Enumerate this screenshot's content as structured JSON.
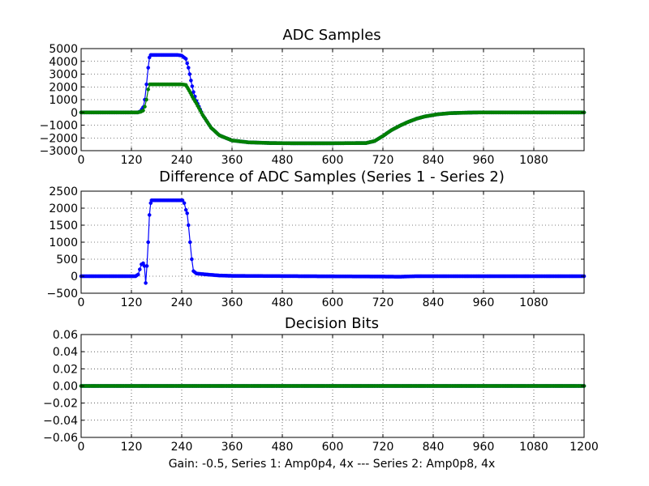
{
  "figure": {
    "xlabel": "Gain: -0.5, Series 1: Amp0p4, 4x --- Series 2: Amp0p8, 4x"
  },
  "colors": {
    "series1": "#0000ff",
    "series2": "#008000",
    "grid": "#000000"
  },
  "chart_data": [
    {
      "id": "adc",
      "type": "line",
      "title": "ADC Samples",
      "xlim": [
        0,
        1200
      ],
      "ylim": [
        -3000,
        5000
      ],
      "xticks": [
        0,
        120,
        240,
        360,
        480,
        600,
        720,
        840,
        960,
        1080
      ],
      "yticks": [
        -3000,
        -2000,
        -1000,
        0,
        1000,
        2000,
        3000,
        4000,
        5000
      ],
      "grid": true,
      "series": [
        {
          "name": "Series 1",
          "color": "#0000ff",
          "points": [
            [
              0,
              0
            ],
            [
              135,
              0
            ],
            [
              142,
              100
            ],
            [
              148,
              400
            ],
            [
              152,
              1000
            ],
            [
              156,
              2200
            ],
            [
              160,
              3500
            ],
            [
              163,
              4300
            ],
            [
              166,
              4500
            ],
            [
              230,
              4500
            ],
            [
              240,
              4450
            ],
            [
              250,
              4200
            ],
            [
              256,
              3500
            ],
            [
              262,
              2500
            ],
            [
              268,
              1600
            ],
            [
              275,
              900
            ],
            [
              290,
              -200
            ],
            [
              310,
              -1200
            ],
            [
              330,
              -1800
            ],
            [
              360,
              -2200
            ],
            [
              400,
              -2350
            ],
            [
              450,
              -2400
            ],
            [
              500,
              -2420
            ],
            [
              600,
              -2420
            ],
            [
              680,
              -2400
            ],
            [
              700,
              -2250
            ],
            [
              720,
              -1850
            ],
            [
              740,
              -1400
            ],
            [
              760,
              -1050
            ],
            [
              780,
              -750
            ],
            [
              800,
              -500
            ],
            [
              820,
              -320
            ],
            [
              850,
              -150
            ],
            [
              880,
              -60
            ],
            [
              920,
              -20
            ],
            [
              960,
              0
            ],
            [
              1200,
              0
            ]
          ]
        },
        {
          "name": "Series 2",
          "color": "#008000",
          "points": [
            [
              0,
              0
            ],
            [
              135,
              0
            ],
            [
              142,
              50
            ],
            [
              148,
              150
            ],
            [
              152,
              450
            ],
            [
              156,
              1000
            ],
            [
              160,
              1800
            ],
            [
              164,
              2200
            ],
            [
              240,
              2200
            ],
            [
              250,
              2150
            ],
            [
              258,
              1700
            ],
            [
              266,
              1200
            ],
            [
              275,
              700
            ],
            [
              290,
              -200
            ],
            [
              310,
              -1200
            ],
            [
              330,
              -1800
            ],
            [
              360,
              -2200
            ],
            [
              400,
              -2350
            ],
            [
              450,
              -2400
            ],
            [
              500,
              -2420
            ],
            [
              600,
              -2420
            ],
            [
              680,
              -2400
            ],
            [
              700,
              -2250
            ],
            [
              720,
              -1850
            ],
            [
              740,
              -1400
            ],
            [
              760,
              -1050
            ],
            [
              780,
              -750
            ],
            [
              800,
              -500
            ],
            [
              820,
              -320
            ],
            [
              850,
              -150
            ],
            [
              880,
              -60
            ],
            [
              920,
              -20
            ],
            [
              960,
              0
            ],
            [
              1200,
              0
            ]
          ]
        }
      ]
    },
    {
      "id": "diff",
      "type": "line",
      "title": "Difference of ADC Samples (Series 1 - Series 2)",
      "xlim": [
        0,
        1200
      ],
      "ylim": [
        -500,
        2500
      ],
      "xticks": [
        0,
        120,
        240,
        360,
        480,
        600,
        720,
        840,
        960,
        1080
      ],
      "yticks": [
        -500,
        0,
        500,
        1000,
        1500,
        2000,
        2500
      ],
      "grid": true,
      "series": [
        {
          "name": "Series 1 - Series 2",
          "color": "#0000ff",
          "points": [
            [
              0,
              0
            ],
            [
              130,
              0
            ],
            [
              136,
              50
            ],
            [
              140,
              200
            ],
            [
              144,
              350
            ],
            [
              148,
              380
            ],
            [
              151,
              300
            ],
            [
              154,
              -200
            ],
            [
              157,
              300
            ],
            [
              160,
              1000
            ],
            [
              163,
              1800
            ],
            [
              166,
              2150
            ],
            [
              168,
              2230
            ],
            [
              242,
              2230
            ],
            [
              246,
              2150
            ],
            [
              250,
              1950
            ],
            [
              253,
              1850
            ],
            [
              256,
              1500
            ],
            [
              260,
              1000
            ],
            [
              264,
              500
            ],
            [
              268,
              150
            ],
            [
              275,
              80
            ],
            [
              300,
              50
            ],
            [
              330,
              20
            ],
            [
              360,
              10
            ],
            [
              720,
              -10
            ],
            [
              760,
              -15
            ],
            [
              800,
              0
            ],
            [
              1200,
              0
            ]
          ]
        }
      ]
    },
    {
      "id": "bits",
      "type": "line",
      "title": "Decision Bits",
      "xlim": [
        0,
        1200
      ],
      "ylim": [
        -0.06,
        0.06
      ],
      "xticks": [
        0,
        120,
        240,
        360,
        480,
        600,
        720,
        840,
        960,
        1080,
        1200
      ],
      "yticks": [
        -0.06,
        -0.04,
        -0.02,
        0.0,
        0.02,
        0.04,
        0.06
      ],
      "grid": true,
      "series": [
        {
          "name": "Series 1",
          "color": "#0000ff",
          "points": [
            [
              0,
              0
            ],
            [
              1200,
              0
            ]
          ]
        },
        {
          "name": "Series 2",
          "color": "#008000",
          "points": [
            [
              0,
              0
            ],
            [
              1200,
              0
            ]
          ]
        }
      ]
    }
  ]
}
